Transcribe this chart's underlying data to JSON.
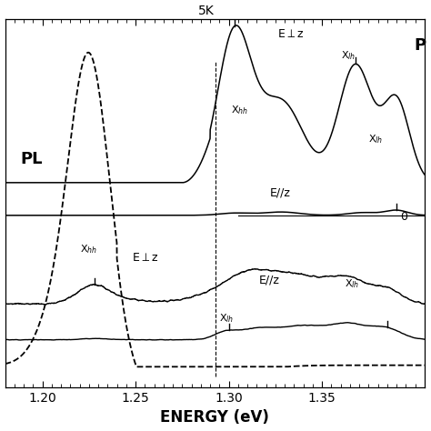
{
  "title": "5K",
  "xlabel": "ENERGY (eV)",
  "xlim": [
    1.18,
    1.405
  ],
  "ylim": [
    -0.05,
    1.0
  ],
  "xticks": [
    1.2,
    1.25,
    1.3,
    1.35
  ],
  "background_color": "#ffffff",
  "pl_label": "PL",
  "ple_label": "P",
  "zero_label": "0",
  "vline_x": 1.293,
  "zero_line_y": 0.44
}
